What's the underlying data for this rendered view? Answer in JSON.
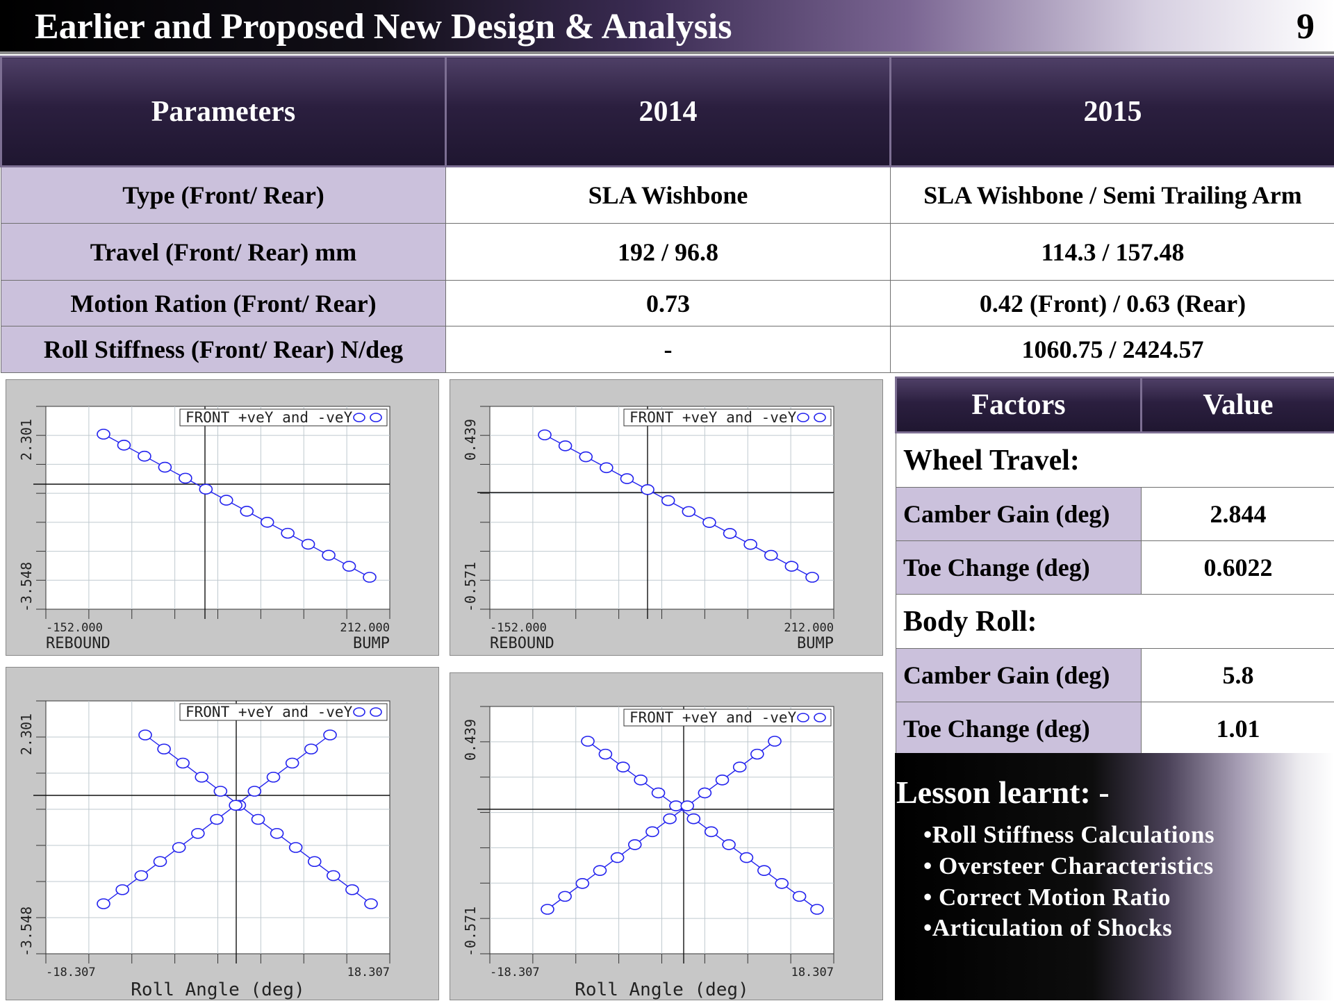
{
  "header": {
    "title": "Earlier and Proposed New Design  & Analysis",
    "slide_number": "9"
  },
  "param_table": {
    "columns": [
      "Parameters",
      "2014",
      "2015"
    ],
    "rows": [
      {
        "label": "Type (Front/ Rear)",
        "y2014": "SLA Wishbone",
        "y2015": "SLA Wishbone / Semi Trailing Arm"
      },
      {
        "label": "Travel (Front/ Rear) mm",
        "y2014": "192 / 96.8",
        "y2015": "114.3 / 157.48"
      },
      {
        "label": "Motion Ration (Front/ Rear)",
        "y2014": "0.73",
        "y2015": "0.42 (Front) / 0.63 (Rear)"
      },
      {
        "label": "Roll Stiffness (Front/ Rear) N/deg",
        "y2014": "-",
        "y2015": "1060.75 / 2424.57"
      }
    ]
  },
  "plots": [
    {
      "legend": "FRONT +veY and -veY",
      "ymax": "2.301",
      "ymin": "-3.548",
      "xmin": "-152.000",
      "xmax": "212.000",
      "xlabel_left": "REBOUND",
      "xlabel_right": "BUMP",
      "xlabel_center": ""
    },
    {
      "legend": "FRONT +veY and -veY",
      "ymax": "0.439",
      "ymin": "-0.571",
      "xmin": "-152.000",
      "xmax": "212.000",
      "xlabel_left": "REBOUND",
      "xlabel_right": "BUMP",
      "xlabel_center": ""
    },
    {
      "legend": "FRONT +veY and -veY",
      "ymax": "2.301",
      "ymin": "-3.548",
      "xmin": "-18.307",
      "xmax": "18.307",
      "xlabel_left": "",
      "xlabel_right": "",
      "xlabel_center": "Roll Angle (deg)"
    },
    {
      "legend": "FRONT +veY and -veY",
      "ymax": "0.439",
      "ymin": "-0.571",
      "xmin": "-18.307",
      "xmax": "18.307",
      "xlabel_left": "",
      "xlabel_right": "",
      "xlabel_center": "Roll Angle (deg)"
    }
  ],
  "factors_table": {
    "columns": [
      "Factors",
      "Value"
    ],
    "sections": [
      {
        "title": "Wheel Travel:",
        "rows": [
          {
            "label": "Camber Gain (deg)",
            "value": "2.844"
          },
          {
            "label": "Toe Change (deg)",
            "value": "0.6022"
          }
        ]
      },
      {
        "title": "Body Roll:",
        "rows": [
          {
            "label": "Camber Gain (deg)",
            "value": "5.8"
          },
          {
            "label": "Toe Change (deg)",
            "value": "1.01"
          }
        ]
      }
    ]
  },
  "lesson": {
    "title": "Lesson learnt: -",
    "items": [
      "•Roll Stiffness Calculations",
      "• Oversteer Characteristics",
      "• Correct Motion Ratio",
      "•Articulation of Shocks"
    ]
  },
  "colors": {
    "header_purple": "#2b1f3f",
    "row_label_lavender": "#cbc1dc",
    "plot_line_blue": "#2222ee",
    "plot_bg_gray": "#c7c7c7"
  }
}
